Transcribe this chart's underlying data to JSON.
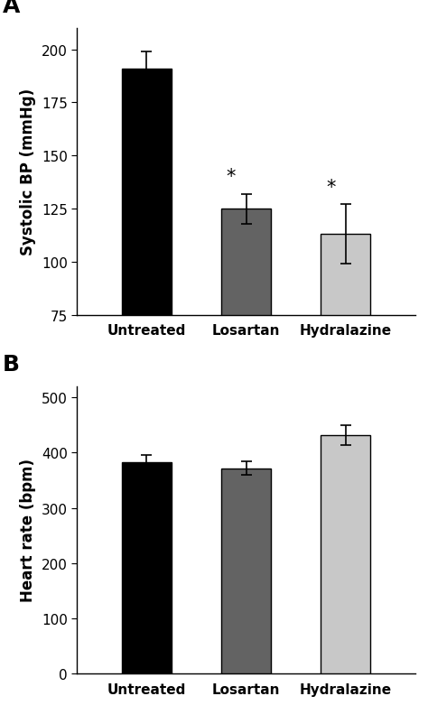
{
  "panel_A": {
    "categories": [
      "Untreated",
      "Losartan",
      "Hydralazine"
    ],
    "values": [
      191,
      125,
      113
    ],
    "errors": [
      8,
      7,
      14
    ],
    "bar_colors": [
      "#000000",
      "#636363",
      "#c8c8c8"
    ],
    "bar_edge_colors": [
      "#000000",
      "#000000",
      "#000000"
    ],
    "ylabel": "Systolic BP (mmHg)",
    "ylim": [
      75,
      210
    ],
    "yticks": [
      75,
      100,
      125,
      150,
      175,
      200
    ],
    "significant": [
      false,
      true,
      true
    ],
    "label": "A"
  },
  "panel_B": {
    "categories": [
      "Untreated",
      "Losartan",
      "Hydralazine"
    ],
    "values": [
      382,
      372,
      432
    ],
    "errors": [
      14,
      12,
      18
    ],
    "bar_colors": [
      "#000000",
      "#636363",
      "#c8c8c8"
    ],
    "bar_edge_colors": [
      "#000000",
      "#000000",
      "#000000"
    ],
    "ylabel": "Heart rate (bpm)",
    "ylim": [
      0,
      520
    ],
    "yticks": [
      0,
      100,
      200,
      300,
      400,
      500
    ],
    "significant": [
      false,
      false,
      false
    ],
    "label": "B"
  },
  "bar_width": 0.5,
  "capsize": 4,
  "error_linewidth": 1.2,
  "background_color": "#ffffff",
  "tick_fontsize": 11,
  "label_fontsize": 12,
  "panel_label_fontsize": 18,
  "star_fontsize": 15
}
